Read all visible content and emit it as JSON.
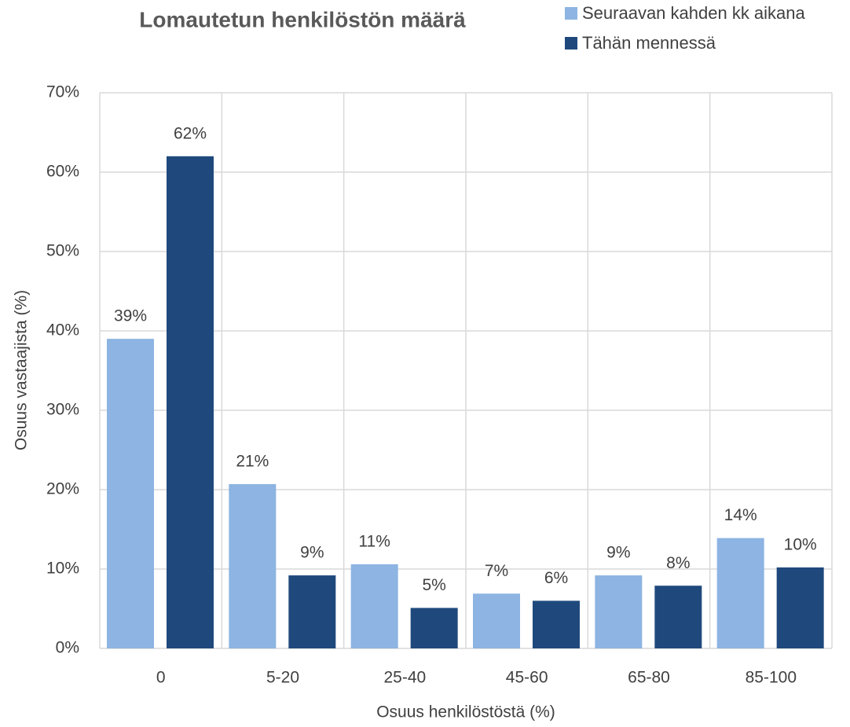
{
  "chart_data": {
    "type": "bar",
    "title": "Lomautetun henkilöstön määrä",
    "categories": [
      "0",
      "5-20",
      "25-40",
      "45-60",
      "65-80",
      "85-100"
    ],
    "series": [
      {
        "name": "Seuraavan kahden kk aikana",
        "color": "#8db4e2",
        "values": [
          39,
          20.7,
          10.6,
          6.9,
          9.2,
          13.9
        ],
        "value_labels": [
          "39%",
          "21%",
          "11%",
          "7%",
          "9%",
          "14%"
        ]
      },
      {
        "name": "Tähän mennessä",
        "color": "#1f497d",
        "values": [
          62,
          9.2,
          5.1,
          6,
          7.9,
          10.2
        ],
        "value_labels": [
          "62%",
          "9%",
          "5%",
          "6%",
          "8%",
          "10%"
        ]
      }
    ],
    "xlabel": "Osuus henkilöstöstä (%)",
    "ylabel": "Osuus vastaajista (%)",
    "ylim": [
      0,
      70
    ],
    "yticks": [
      {
        "value": 0,
        "label": "0%"
      },
      {
        "value": 10,
        "label": "10%"
      },
      {
        "value": 20,
        "label": "20%"
      },
      {
        "value": 30,
        "label": "30%"
      },
      {
        "value": 40,
        "label": "40%"
      },
      {
        "value": 50,
        "label": "50%"
      },
      {
        "value": 60,
        "label": "60%"
      },
      {
        "value": 70,
        "label": "70%"
      }
    ],
    "grid": true,
    "legend": "top-right"
  }
}
